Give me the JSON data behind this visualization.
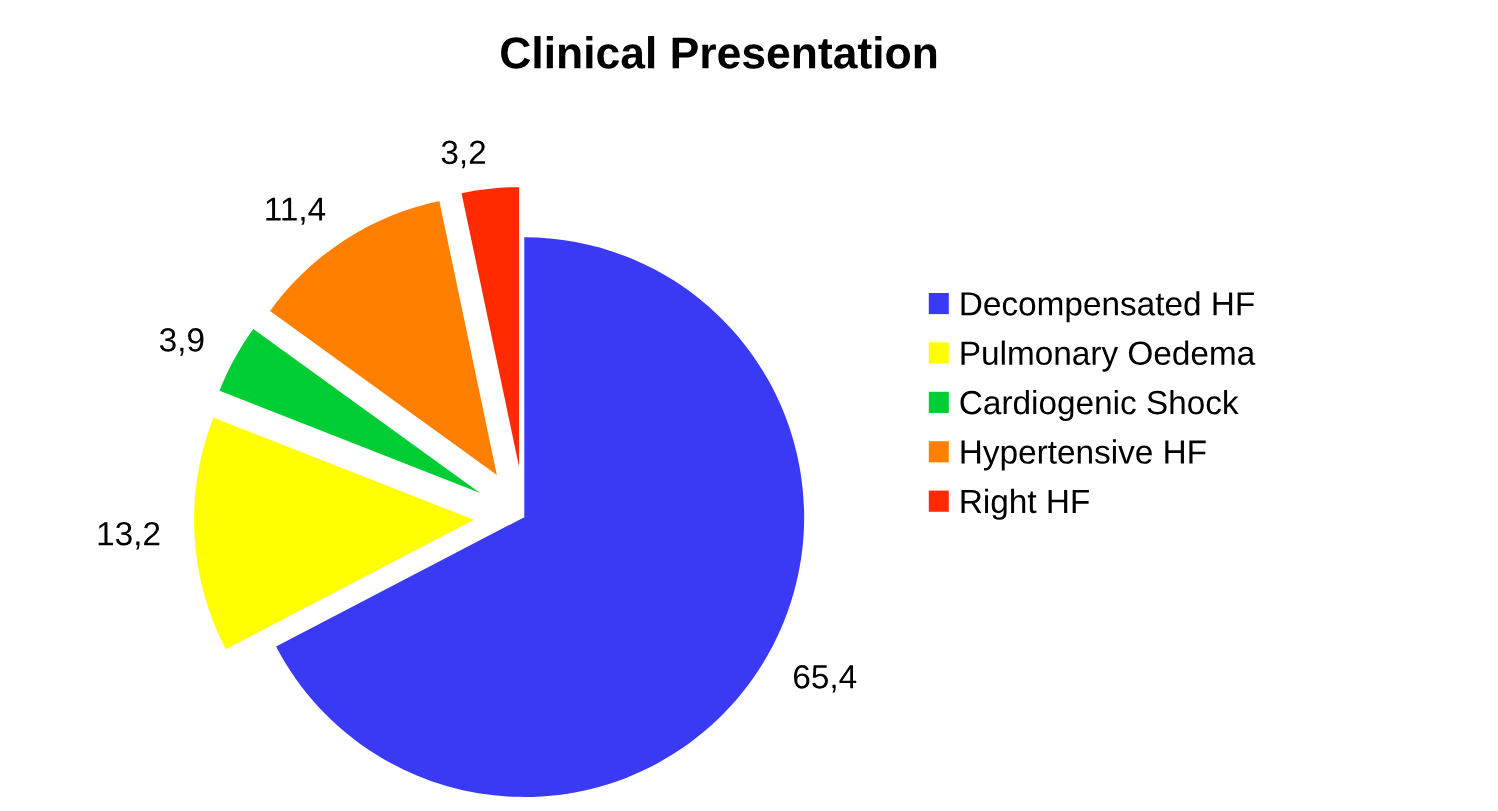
{
  "chart_data": {
    "type": "pie",
    "title": "Clinical Presentation",
    "categories": [
      "Decompensated HF",
      "Pulmonary Oedema",
      "Cardiogenic Shock",
      "Hypertensive HF",
      "Right HF"
    ],
    "values": [
      65.4,
      13.2,
      3.9,
      11.4,
      3.2
    ],
    "value_labels": [
      "65,4",
      "13,2",
      "3,9",
      "11,4",
      "3,2"
    ],
    "colors": [
      "#3a3af5",
      "#ffff00",
      "#00cc33",
      "#ff8000",
      "#ff2a00"
    ],
    "legend": "right"
  }
}
